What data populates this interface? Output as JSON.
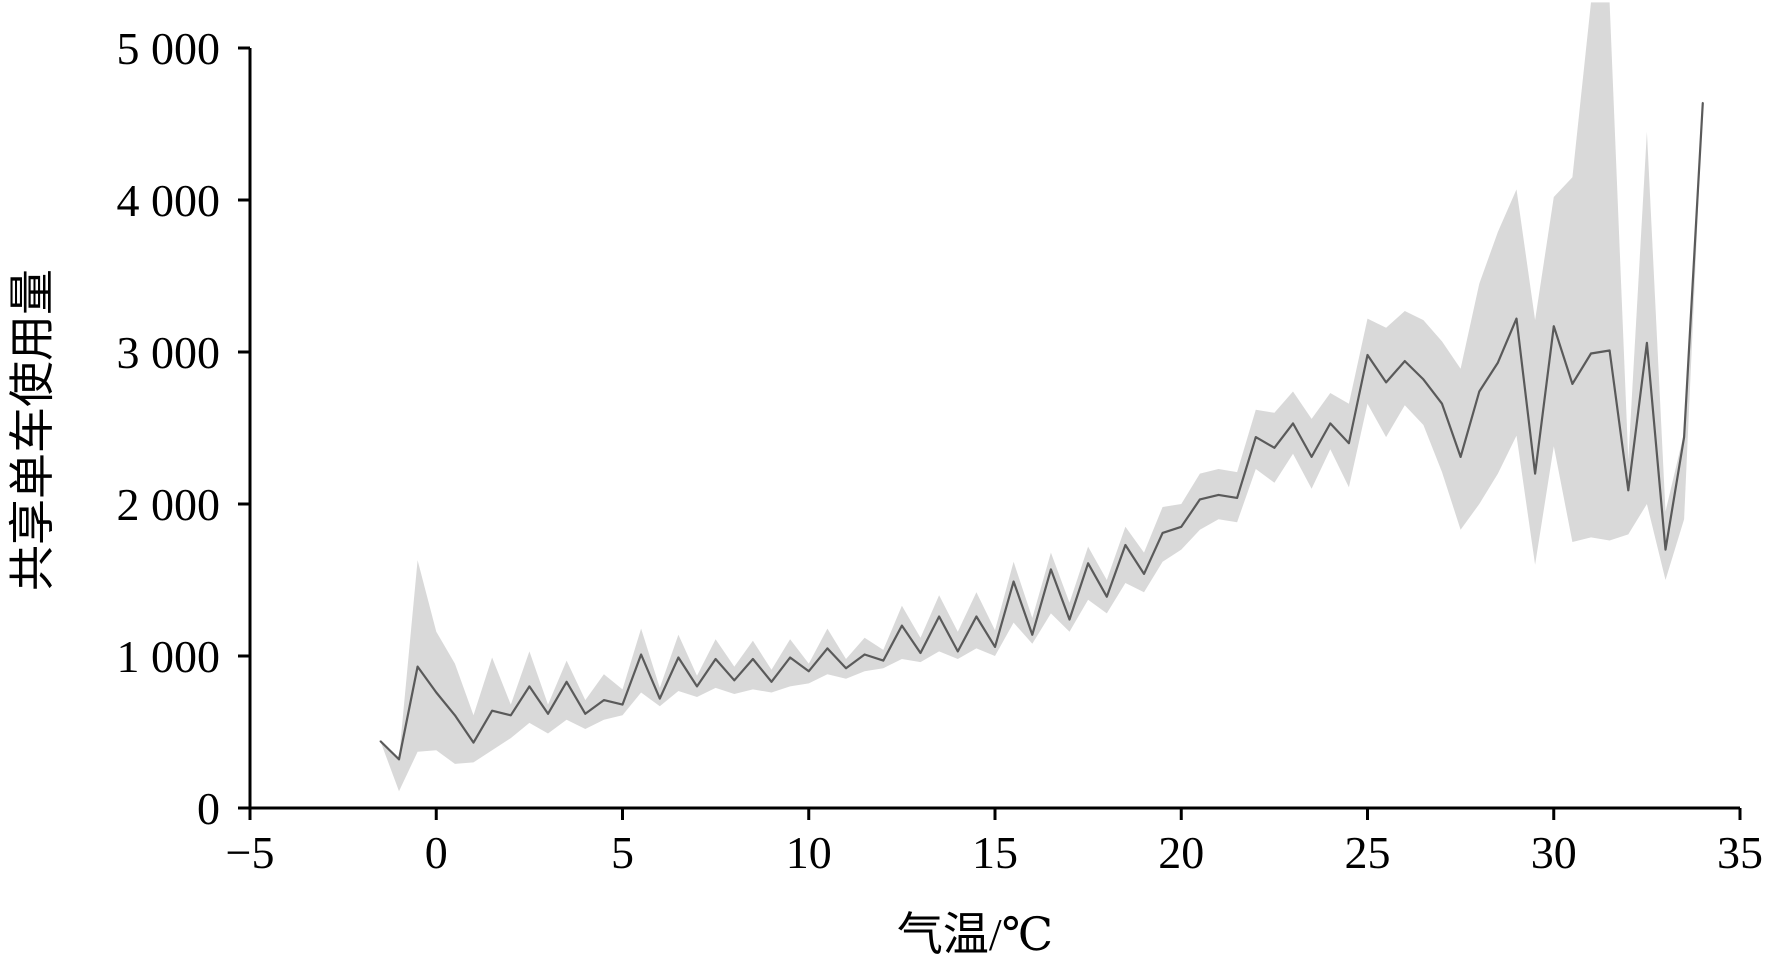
{
  "chart_data": {
    "type": "line",
    "xlabel": "气温/℃",
    "ylabel": "共享单车使用量",
    "xlim": [
      -5,
      35
    ],
    "ylim": [
      0,
      5000
    ],
    "x_ticks": [
      -5,
      0,
      5,
      10,
      15,
      20,
      25,
      30,
      35
    ],
    "x_tick_labels": [
      "−5",
      "0",
      "5",
      "10",
      "15",
      "20",
      "25",
      "30",
      "35"
    ],
    "y_ticks": [
      0,
      1000,
      2000,
      3000,
      4000,
      5000
    ],
    "y_tick_labels": [
      "0",
      "1 000",
      "2 000",
      "3 000",
      "4 000",
      "5 000"
    ],
    "grid": false,
    "colors": {
      "line": "#5a5a5a",
      "band": "#d9d9d9"
    },
    "series": [
      {
        "x": [
          -1.5,
          -1,
          -0.5,
          0,
          0.5,
          1,
          1.5,
          2,
          2.5,
          3,
          3.5,
          4,
          4.5,
          5,
          5.5,
          6,
          6.5,
          7,
          7.5,
          8,
          8.5,
          9,
          9.5,
          10,
          10.5,
          11,
          11.5,
          12,
          12.5,
          13,
          13.5,
          14,
          14.5,
          15,
          15.5,
          16,
          16.5,
          17,
          17.5,
          18,
          18.5,
          19,
          19.5,
          20,
          20.5,
          21,
          21.5,
          22,
          22.5,
          23,
          23.5,
          24,
          24.5,
          25,
          25.5,
          26,
          26.5,
          27,
          27.5,
          28,
          28.5,
          29,
          29.5,
          30,
          30.5,
          31,
          31.5,
          32,
          32.5,
          33,
          33.5,
          34
        ],
        "y": [
          440,
          320,
          930,
          760,
          610,
          430,
          640,
          610,
          800,
          620,
          830,
          620,
          710,
          680,
          1010,
          720,
          990,
          800,
          980,
          840,
          980,
          830,
          990,
          900,
          1050,
          920,
          1010,
          970,
          1200,
          1020,
          1260,
          1030,
          1260,
          1060,
          1490,
          1140,
          1570,
          1240,
          1610,
          1390,
          1730,
          1540,
          1810,
          1850,
          2030,
          2060,
          2040,
          2440,
          2370,
          2530,
          2310,
          2530,
          2400,
          2980,
          2800,
          2940,
          2820,
          2660,
          2310,
          2740,
          2930,
          3220,
          2200,
          3170,
          2790,
          2990,
          3010,
          2090,
          3060,
          1700,
          2440,
          4640
        ],
        "lower": [
          440,
          110,
          370,
          380,
          290,
          300,
          380,
          460,
          560,
          490,
          580,
          520,
          580,
          610,
          760,
          670,
          770,
          730,
          790,
          750,
          780,
          760,
          800,
          820,
          880,
          850,
          900,
          920,
          980,
          960,
          1030,
          980,
          1050,
          1000,
          1220,
          1080,
          1280,
          1160,
          1370,
          1280,
          1480,
          1420,
          1620,
          1700,
          1830,
          1900,
          1880,
          2230,
          2140,
          2330,
          2100,
          2360,
          2110,
          2660,
          2440,
          2650,
          2520,
          2210,
          1830,
          2000,
          2200,
          2450,
          1600,
          2380,
          1750,
          1780,
          1760,
          1800,
          2000,
          1500,
          1900,
          4640
        ],
        "upper": [
          440,
          330,
          1630,
          1160,
          950,
          610,
          990,
          680,
          1030,
          680,
          970,
          710,
          880,
          780,
          1180,
          790,
          1140,
          870,
          1110,
          930,
          1100,
          910,
          1110,
          950,
          1180,
          980,
          1120,
          1040,
          1330,
          1120,
          1400,
          1160,
          1420,
          1170,
          1620,
          1250,
          1680,
          1350,
          1720,
          1500,
          1850,
          1680,
          1980,
          2000,
          2200,
          2230,
          2210,
          2620,
          2600,
          2740,
          2560,
          2730,
          2660,
          3220,
          3160,
          3270,
          3210,
          3070,
          2890,
          3450,
          3790,
          4070,
          3210,
          4020,
          4150,
          5300,
          5300,
          2290,
          4450,
          1950,
          2470,
          4640
        ]
      }
    ]
  }
}
